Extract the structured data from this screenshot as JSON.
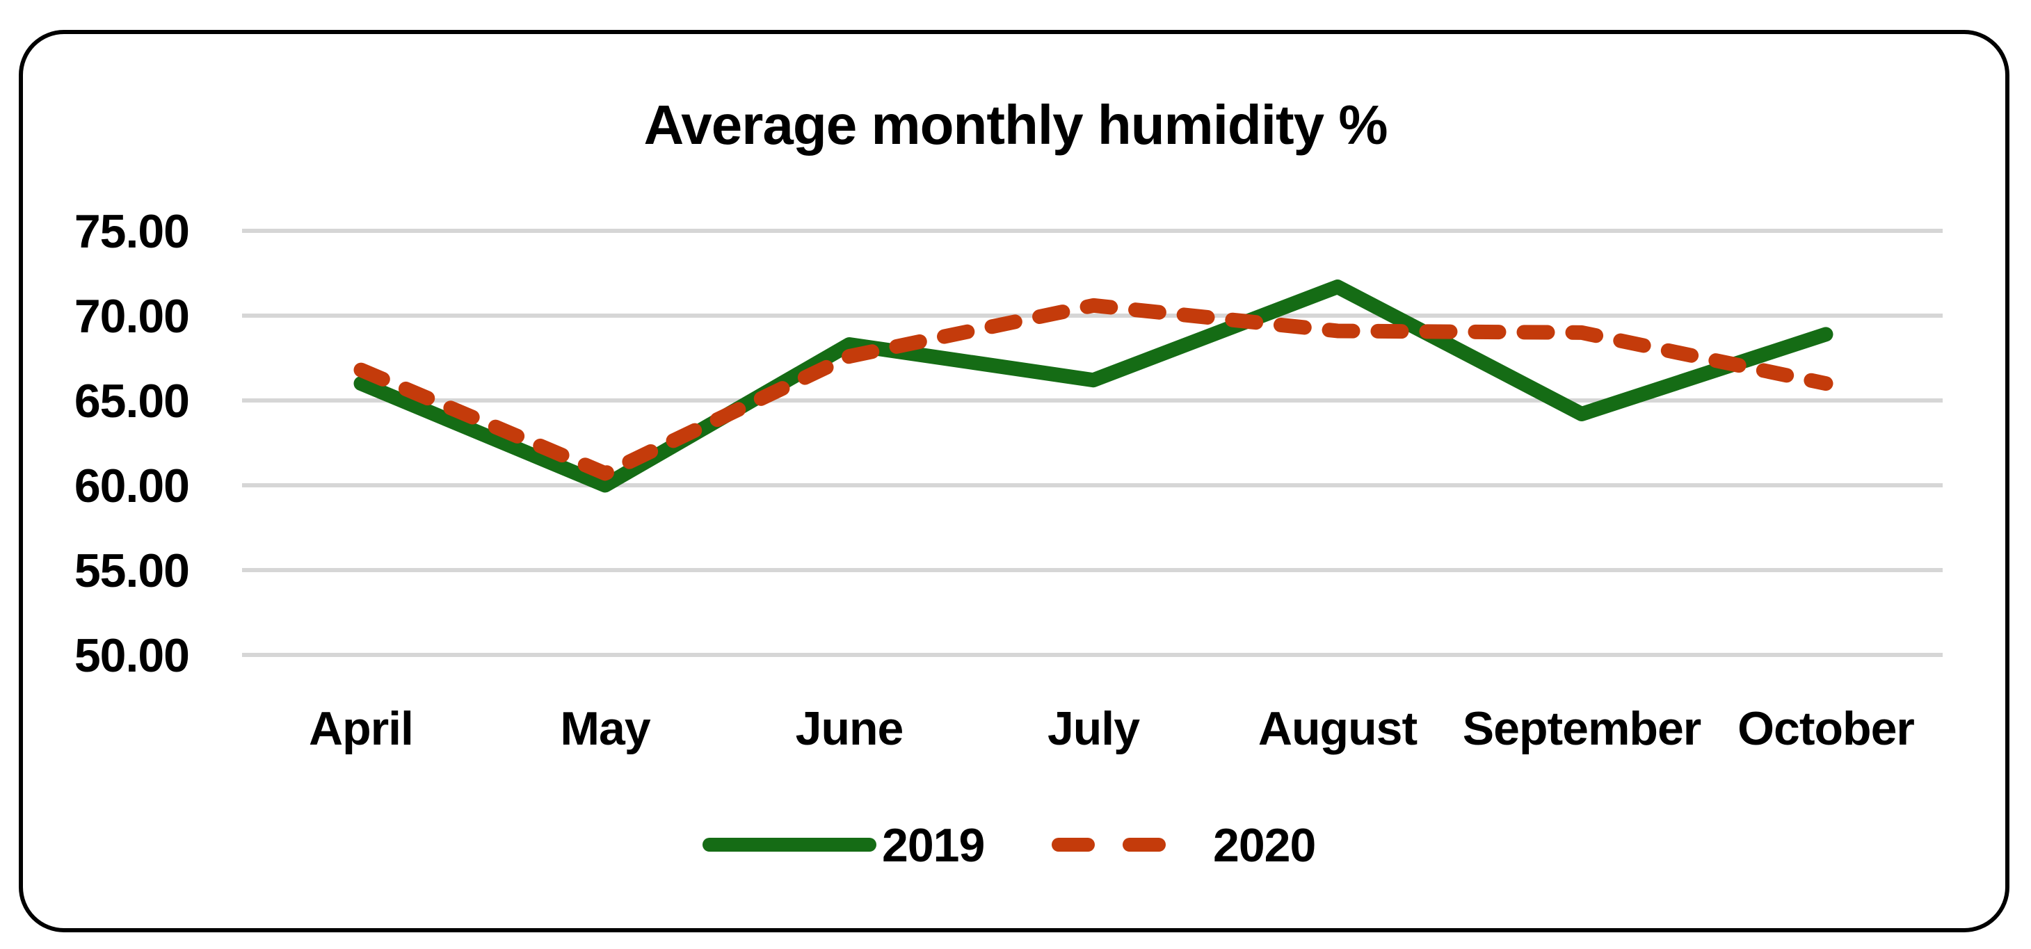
{
  "chart_data": {
    "type": "line",
    "title": "Average monthly humidity %",
    "categories": [
      "April",
      "May",
      "June",
      "July",
      "August",
      "September",
      "October"
    ],
    "series": [
      {
        "name": "2019",
        "color": "#156c15",
        "style": "solid",
        "values": [
          66.0,
          60.0,
          68.3,
          66.2,
          71.7,
          64.2,
          68.9
        ]
      },
      {
        "name": "2020",
        "color": "#c43b0b",
        "style": "dashed",
        "values": [
          66.8,
          60.7,
          67.6,
          70.6,
          69.1,
          69.0,
          66.0
        ]
      }
    ],
    "xlabel": "",
    "ylabel": "",
    "ylim": [
      50,
      75
    ],
    "yticks": [
      {
        "value": 75,
        "label": "75.00"
      },
      {
        "value": 70,
        "label": "70.00"
      },
      {
        "value": 65,
        "label": "65.00"
      },
      {
        "value": 60,
        "label": "60.00"
      },
      {
        "value": 55,
        "label": "55.00"
      },
      {
        "value": 50,
        "label": "50.00"
      }
    ],
    "grid": "horizontal",
    "legend_position": "bottom"
  },
  "colors": {
    "background": "#ffffff",
    "border": "#000000",
    "grid": "#d6d6d6",
    "text": "#000000"
  }
}
